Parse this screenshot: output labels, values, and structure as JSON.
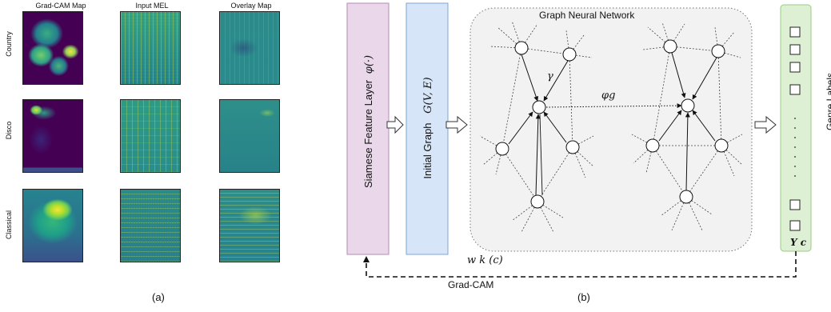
{
  "panel_a": {
    "caption": "(a)",
    "columns": [
      "Grad-CAM Map",
      "Input MEL",
      "Overlay Map"
    ],
    "rows": [
      "Country",
      "Disco",
      "Classical"
    ]
  },
  "panel_b": {
    "caption": "(b)",
    "siamese_label": "Siamese Feature Layer",
    "siamese_symbol": "φ(·)",
    "initial_graph_label": "Initial Graph",
    "graph_symbol": "G(V, E)",
    "gnn_title": "Graph Neural Network",
    "gamma_label": "γ",
    "phi_g_label": "φg",
    "genre_labels": "Genre Labels",
    "yc_label": "Y c",
    "weight_label": "w k (c)",
    "gradcam_label": "Grad-CAM",
    "colors": {
      "siamese_fill": "#ead8ea",
      "siamese_border": "#b58ab5",
      "initial_fill": "#d6e6f8",
      "initial_border": "#7ea6d4",
      "gnn_fill": "#f2f2f2",
      "genre_fill": "#ddf0d4",
      "genre_border": "#9ccb86"
    }
  }
}
